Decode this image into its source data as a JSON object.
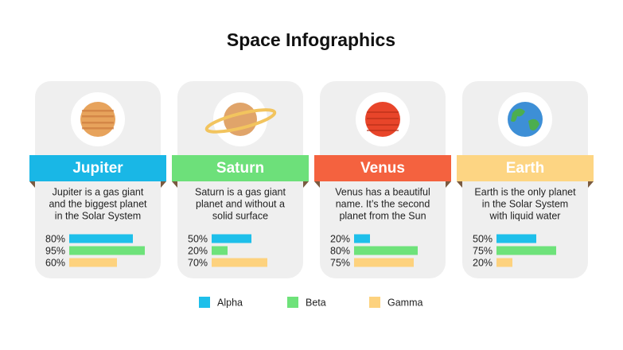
{
  "title": "Space Infographics",
  "legend": [
    {
      "name": "Alpha",
      "color": "#1ebfea"
    },
    {
      "name": "Beta",
      "color": "#6ee27a"
    },
    {
      "name": "Gamma",
      "color": "#fdd27e"
    }
  ],
  "chart_data": [
    {
      "type": "bar",
      "orientation": "horizontal",
      "title": "Jupiter",
      "header_color": "#19b7e6",
      "description": [
        "Jupiter is a gas giant",
        "and the biggest planet",
        "in the Solar System"
      ],
      "values": [
        80,
        95,
        60
      ],
      "value_labels": [
        "80%",
        "95%",
        "60%"
      ],
      "colors": [
        "#1ebfea",
        "#6ee27a",
        "#fdd27e"
      ],
      "xlim": [
        0,
        100
      ]
    },
    {
      "type": "bar",
      "orientation": "horizontal",
      "title": "Saturn",
      "header_color": "#6de07a",
      "description": [
        "Saturn is a gas giant",
        "planet and without a",
        "solid surface"
      ],
      "values": [
        50,
        20,
        70
      ],
      "value_labels": [
        "50%",
        "20%",
        "70%"
      ],
      "colors": [
        "#1ebfea",
        "#6ee27a",
        "#fdd27e"
      ],
      "xlim": [
        0,
        100
      ]
    },
    {
      "type": "bar",
      "orientation": "horizontal",
      "title": "Venus",
      "header_color": "#f4623f",
      "description": [
        "Venus has a beautiful",
        "name. It’s the second",
        "planet from the Sun"
      ],
      "values": [
        20,
        80,
        75
      ],
      "value_labels": [
        "20%",
        "80%",
        "75%"
      ],
      "colors": [
        "#1ebfea",
        "#6ee27a",
        "#fdd27e"
      ],
      "xlim": [
        0,
        100
      ]
    },
    {
      "type": "bar",
      "orientation": "horizontal",
      "title": "Earth",
      "header_color": "#fdd583",
      "description": [
        "Earth is the only planet",
        "in the Solar System",
        "with liquid water"
      ],
      "values": [
        50,
        75,
        20
      ],
      "value_labels": [
        "50%",
        "75%",
        "20%"
      ],
      "colors": [
        "#1ebfea",
        "#6ee27a",
        "#fdd27e"
      ],
      "xlim": [
        0,
        100
      ]
    }
  ]
}
